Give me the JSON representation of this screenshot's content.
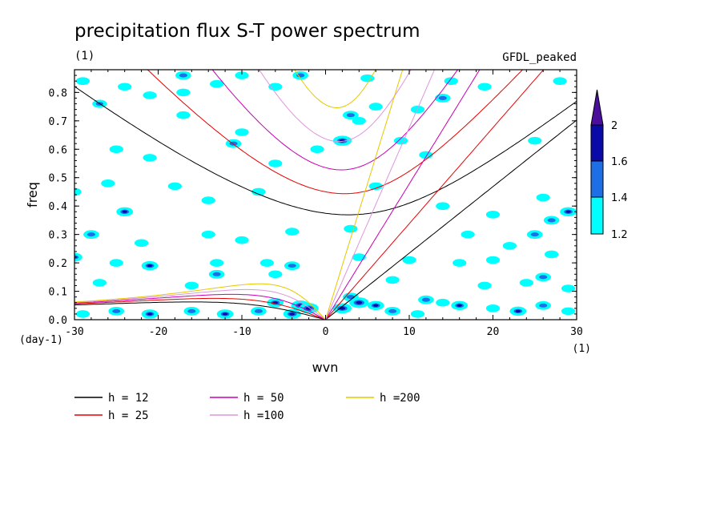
{
  "chart_data": {
    "type": "heatmap",
    "title": "precipitation flux S-T power spectrum",
    "subtitle_left": "(1)",
    "subtitle_right": "GFDL_peaked",
    "xlabel": "wvn",
    "ylabel": "freq",
    "x_unit_label": "(1)",
    "y_unit_label": "(day-1)",
    "xlim": [
      -30,
      30
    ],
    "ylim": [
      0,
      0.88
    ],
    "x_ticks": [
      -30,
      -20,
      -10,
      0,
      10,
      20,
      30
    ],
    "x_tick_labels": [
      "-30",
      "-20",
      "-10",
      "0",
      "10",
      "20",
      "30"
    ],
    "y_ticks": [
      0.0,
      0.1,
      0.2,
      0.3,
      0.4,
      0.5,
      0.6,
      0.7,
      0.8
    ],
    "y_tick_labels": [
      "0.0",
      "0.1",
      "0.2",
      "0.3",
      "0.4",
      "0.5",
      "0.6",
      "0.7",
      "0.8"
    ],
    "colorbar": {
      "levels": [
        1.2,
        1.4,
        1.6,
        2
      ],
      "level_labels": [
        "1.2",
        "1.4",
        "1.6",
        "2"
      ],
      "colors": [
        "#00ffff",
        "#1e6fe6",
        "#0a0aa8",
        "#4b0f9c"
      ]
    },
    "dispersion_curves": [
      {
        "label": "h = 12",
        "h": 12,
        "color": "#000000"
      },
      {
        "label": "h = 25",
        "h": 25,
        "color": "#e60000"
      },
      {
        "label": "h = 50",
        "h": 50,
        "color": "#c800b4"
      },
      {
        "label": "h =100",
        "h": 100,
        "color": "#dc96dc"
      },
      {
        "label": "h =200",
        "h": 200,
        "color": "#e6c800"
      }
    ],
    "spectrum_patches": [
      {
        "k": -29,
        "f": 0.84,
        "v": 1.3
      },
      {
        "k": -27,
        "f": 0.76,
        "v": 1.4
      },
      {
        "k": -24,
        "f": 0.82,
        "v": 1.3
      },
      {
        "k": -21,
        "f": 0.79,
        "v": 1.3
      },
      {
        "k": -17,
        "f": 0.72,
        "v": 1.3
      },
      {
        "k": -17,
        "f": 0.8,
        "v": 1.3
      },
      {
        "k": -13,
        "f": 0.83,
        "v": 1.3
      },
      {
        "k": -10,
        "f": 0.86,
        "v": 1.3
      },
      {
        "k": -6,
        "f": 0.82,
        "v": 1.3
      },
      {
        "k": -17,
        "f": 0.86,
        "v": 1.5
      },
      {
        "k": -3,
        "f": 0.86,
        "v": 1.5
      },
      {
        "k": 5,
        "f": 0.85,
        "v": 1.3
      },
      {
        "k": 6,
        "f": 0.75,
        "v": 1.3
      },
      {
        "k": 3,
        "f": 0.72,
        "v": 1.5
      },
      {
        "k": 2,
        "f": 0.63,
        "v": 1.8
      },
      {
        "k": 4,
        "f": 0.7,
        "v": 1.3
      },
      {
        "k": 11,
        "f": 0.74,
        "v": 1.3
      },
      {
        "k": 14,
        "f": 0.78,
        "v": 1.5
      },
      {
        "k": 15,
        "f": 0.84,
        "v": 1.3
      },
      {
        "k": 19,
        "f": 0.82,
        "v": 1.3
      },
      {
        "k": 28,
        "f": 0.84,
        "v": 1.3
      },
      {
        "k": -25,
        "f": 0.6,
        "v": 1.3
      },
      {
        "k": -21,
        "f": 0.57,
        "v": 1.3
      },
      {
        "k": -10,
        "f": 0.66,
        "v": 1.3
      },
      {
        "k": -11,
        "f": 0.62,
        "v": 1.5
      },
      {
        "k": -6,
        "f": 0.55,
        "v": 1.3
      },
      {
        "k": -1,
        "f": 0.6,
        "v": 1.3
      },
      {
        "k": 9,
        "f": 0.63,
        "v": 1.3
      },
      {
        "k": 12,
        "f": 0.58,
        "v": 1.3
      },
      {
        "k": 25,
        "f": 0.63,
        "v": 1.3
      },
      {
        "k": -26,
        "f": 0.48,
        "v": 1.3
      },
      {
        "k": -18,
        "f": 0.47,
        "v": 1.3
      },
      {
        "k": -30,
        "f": 0.45,
        "v": 1.3
      },
      {
        "k": -24,
        "f": 0.38,
        "v": 1.6
      },
      {
        "k": -14,
        "f": 0.42,
        "v": 1.3
      },
      {
        "k": -8,
        "f": 0.45,
        "v": 1.3
      },
      {
        "k": 6,
        "f": 0.47,
        "v": 1.3
      },
      {
        "k": 14,
        "f": 0.4,
        "v": 1.3
      },
      {
        "k": 20,
        "f": 0.37,
        "v": 1.3
      },
      {
        "k": 26,
        "f": 0.43,
        "v": 1.3
      },
      {
        "k": 29,
        "f": 0.38,
        "v": 1.6
      },
      {
        "k": 27,
        "f": 0.35,
        "v": 1.5
      },
      {
        "k": -28,
        "f": 0.3,
        "v": 1.5
      },
      {
        "k": -22,
        "f": 0.27,
        "v": 1.3
      },
      {
        "k": -14,
        "f": 0.3,
        "v": 1.3
      },
      {
        "k": -10,
        "f": 0.28,
        "v": 1.3
      },
      {
        "k": -4,
        "f": 0.31,
        "v": 1.3
      },
      {
        "k": 3,
        "f": 0.32,
        "v": 1.3
      },
      {
        "k": 17,
        "f": 0.3,
        "v": 1.3
      },
      {
        "k": 22,
        "f": 0.26,
        "v": 1.3
      },
      {
        "k": 25,
        "f": 0.3,
        "v": 1.5
      },
      {
        "k": -30,
        "f": 0.22,
        "v": 1.5
      },
      {
        "k": -25,
        "f": 0.2,
        "v": 1.3
      },
      {
        "k": -21,
        "f": 0.19,
        "v": 1.6
      },
      {
        "k": -13,
        "f": 0.2,
        "v": 1.3
      },
      {
        "k": -7,
        "f": 0.2,
        "v": 1.3
      },
      {
        "k": -4,
        "f": 0.19,
        "v": 1.5
      },
      {
        "k": 4,
        "f": 0.22,
        "v": 1.3
      },
      {
        "k": 10,
        "f": 0.21,
        "v": 1.3
      },
      {
        "k": 16,
        "f": 0.2,
        "v": 1.3
      },
      {
        "k": 20,
        "f": 0.21,
        "v": 1.3
      },
      {
        "k": 27,
        "f": 0.23,
        "v": 1.3
      },
      {
        "k": 26,
        "f": 0.15,
        "v": 1.5
      },
      {
        "k": -27,
        "f": 0.13,
        "v": 1.3
      },
      {
        "k": -16,
        "f": 0.12,
        "v": 1.3
      },
      {
        "k": -13,
        "f": 0.16,
        "v": 1.5
      },
      {
        "k": -6,
        "f": 0.16,
        "v": 1.3
      },
      {
        "k": 8,
        "f": 0.14,
        "v": 1.3
      },
      {
        "k": 19,
        "f": 0.12,
        "v": 1.3
      },
      {
        "k": 24,
        "f": 0.13,
        "v": 1.3
      },
      {
        "k": 29,
        "f": 0.11,
        "v": 1.3
      },
      {
        "k": -3,
        "f": 0.05,
        "v": 1.8
      },
      {
        "k": -2,
        "f": 0.04,
        "v": 1.9
      },
      {
        "k": -4,
        "f": 0.02,
        "v": 1.7
      },
      {
        "k": 2,
        "f": 0.04,
        "v": 1.8
      },
      {
        "k": 4,
        "f": 0.06,
        "v": 1.9
      },
      {
        "k": 3,
        "f": 0.08,
        "v": 1.5
      },
      {
        "k": 6,
        "f": 0.05,
        "v": 1.6
      },
      {
        "k": 8,
        "f": 0.03,
        "v": 1.5
      },
      {
        "k": -6,
        "f": 0.06,
        "v": 1.6
      },
      {
        "k": -8,
        "f": 0.03,
        "v": 1.5
      },
      {
        "k": -12,
        "f": 0.02,
        "v": 1.6
      },
      {
        "k": -16,
        "f": 0.03,
        "v": 1.5
      },
      {
        "k": -21,
        "f": 0.02,
        "v": 1.6
      },
      {
        "k": -25,
        "f": 0.03,
        "v": 1.5
      },
      {
        "k": -29,
        "f": 0.02,
        "v": 1.3
      },
      {
        "k": 12,
        "f": 0.07,
        "v": 1.5
      },
      {
        "k": 14,
        "f": 0.06,
        "v": 1.3
      },
      {
        "k": 16,
        "f": 0.05,
        "v": 1.6
      },
      {
        "k": 20,
        "f": 0.04,
        "v": 1.3
      },
      {
        "k": 23,
        "f": 0.03,
        "v": 1.6
      },
      {
        "k": 26,
        "f": 0.05,
        "v": 1.5
      },
      {
        "k": 29,
        "f": 0.03,
        "v": 1.3
      },
      {
        "k": 11,
        "f": 0.02,
        "v": 1.3
      }
    ]
  }
}
